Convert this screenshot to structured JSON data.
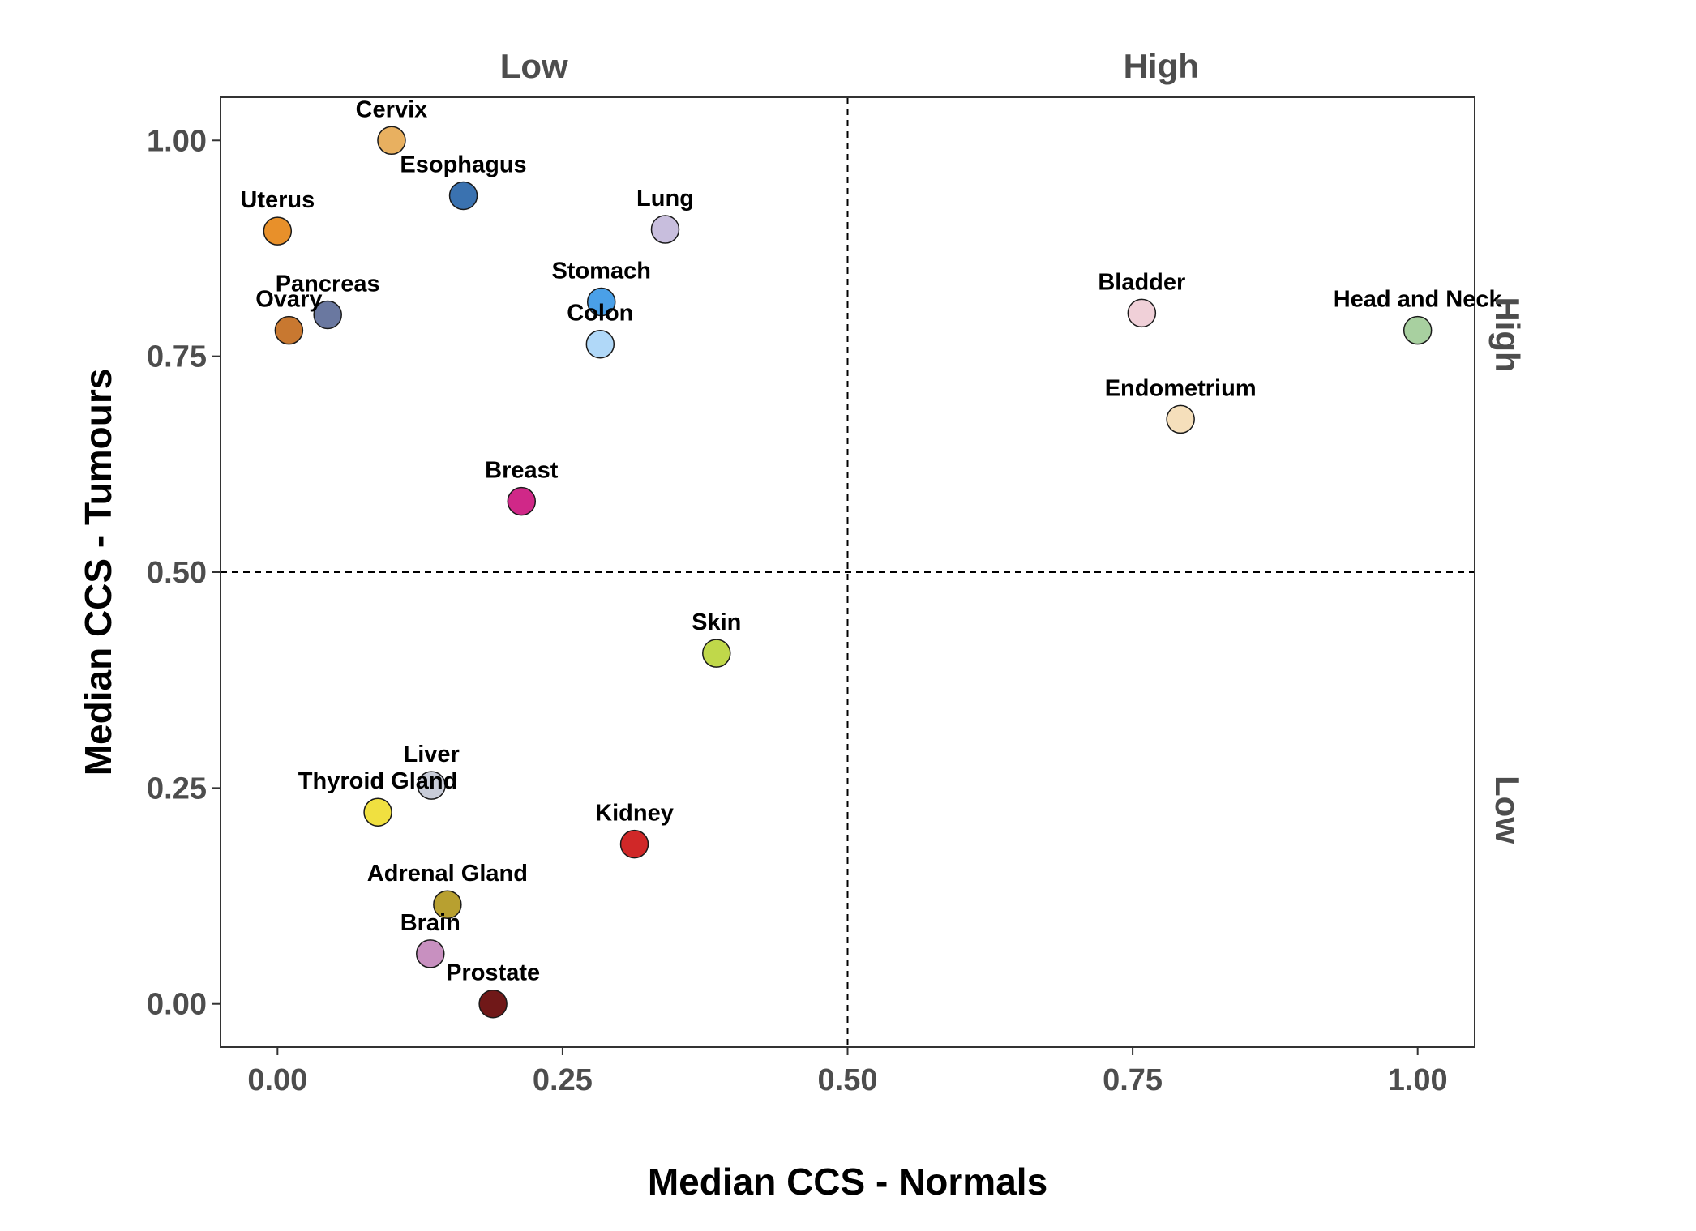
{
  "chart_data": {
    "type": "scatter",
    "xlabel": "Median CCS - Normals",
    "ylabel": "Median CCS - Tumours",
    "xlim": [
      -0.05,
      1.05
    ],
    "ylim": [
      -0.05,
      1.05
    ],
    "x_ticks": [
      "0.00",
      "0.25",
      "0.50",
      "0.75",
      "1.00"
    ],
    "y_ticks": [
      "0.00",
      "0.25",
      "0.50",
      "0.75",
      "1.00"
    ],
    "x_tick_values": [
      0,
      0.25,
      0.5,
      0.75,
      1.0
    ],
    "y_tick_values": [
      0,
      0.25,
      0.5,
      0.75,
      1.0
    ],
    "grid": false,
    "reference_lines": {
      "x": 0.5,
      "y": 0.5,
      "style": "dashed"
    },
    "facet_top": [
      "Low",
      "High"
    ],
    "facet_right": [
      "High",
      "Low"
    ],
    "points": [
      {
        "label": "Cervix",
        "x": 0.1,
        "y": 1.0,
        "color": "#e8b060"
      },
      {
        "label": "Esophagus",
        "x": 0.163,
        "y": 0.936,
        "color": "#3a72b0"
      },
      {
        "label": "Uterus",
        "x": 0.0,
        "y": 0.895,
        "color": "#e8902a"
      },
      {
        "label": "Lung",
        "x": 0.34,
        "y": 0.897,
        "color": "#c8bedd"
      },
      {
        "label": "Pancreas",
        "x": 0.044,
        "y": 0.798,
        "color": "#6a78a0"
      },
      {
        "label": "Ovary",
        "x": 0.01,
        "y": 0.78,
        "color": "#c87830"
      },
      {
        "label": "Stomach",
        "x": 0.284,
        "y": 0.813,
        "color": "#4aa0e8"
      },
      {
        "label": "Colon",
        "x": 0.283,
        "y": 0.764,
        "color": "#b0d8f8"
      },
      {
        "label": "Breast",
        "x": 0.214,
        "y": 0.582,
        "color": "#d02888"
      },
      {
        "label": "Skin",
        "x": 0.385,
        "y": 0.406,
        "color": "#c0d84a"
      },
      {
        "label": "Liver",
        "x": 0.135,
        "y": 0.253,
        "color": "#c8ccd8"
      },
      {
        "label": "Thyroid Gland",
        "x": 0.088,
        "y": 0.222,
        "color": "#f0e040"
      },
      {
        "label": "Kidney",
        "x": 0.313,
        "y": 0.185,
        "color": "#d02828"
      },
      {
        "label": "Adrenal Gland",
        "x": 0.149,
        "y": 0.115,
        "color": "#b8a030"
      },
      {
        "label": "Brain",
        "x": 0.134,
        "y": 0.058,
        "color": "#c890c0"
      },
      {
        "label": "Prostate",
        "x": 0.189,
        "y": 0.0,
        "color": "#701818"
      },
      {
        "label": "Bladder",
        "x": 0.758,
        "y": 0.8,
        "color": "#f0d0d8"
      },
      {
        "label": "Head and Neck",
        "x": 1.0,
        "y": 0.78,
        "color": "#a8d0a0"
      },
      {
        "label": "Endometrium",
        "x": 0.792,
        "y": 0.677,
        "color": "#f5dfbb"
      }
    ]
  }
}
